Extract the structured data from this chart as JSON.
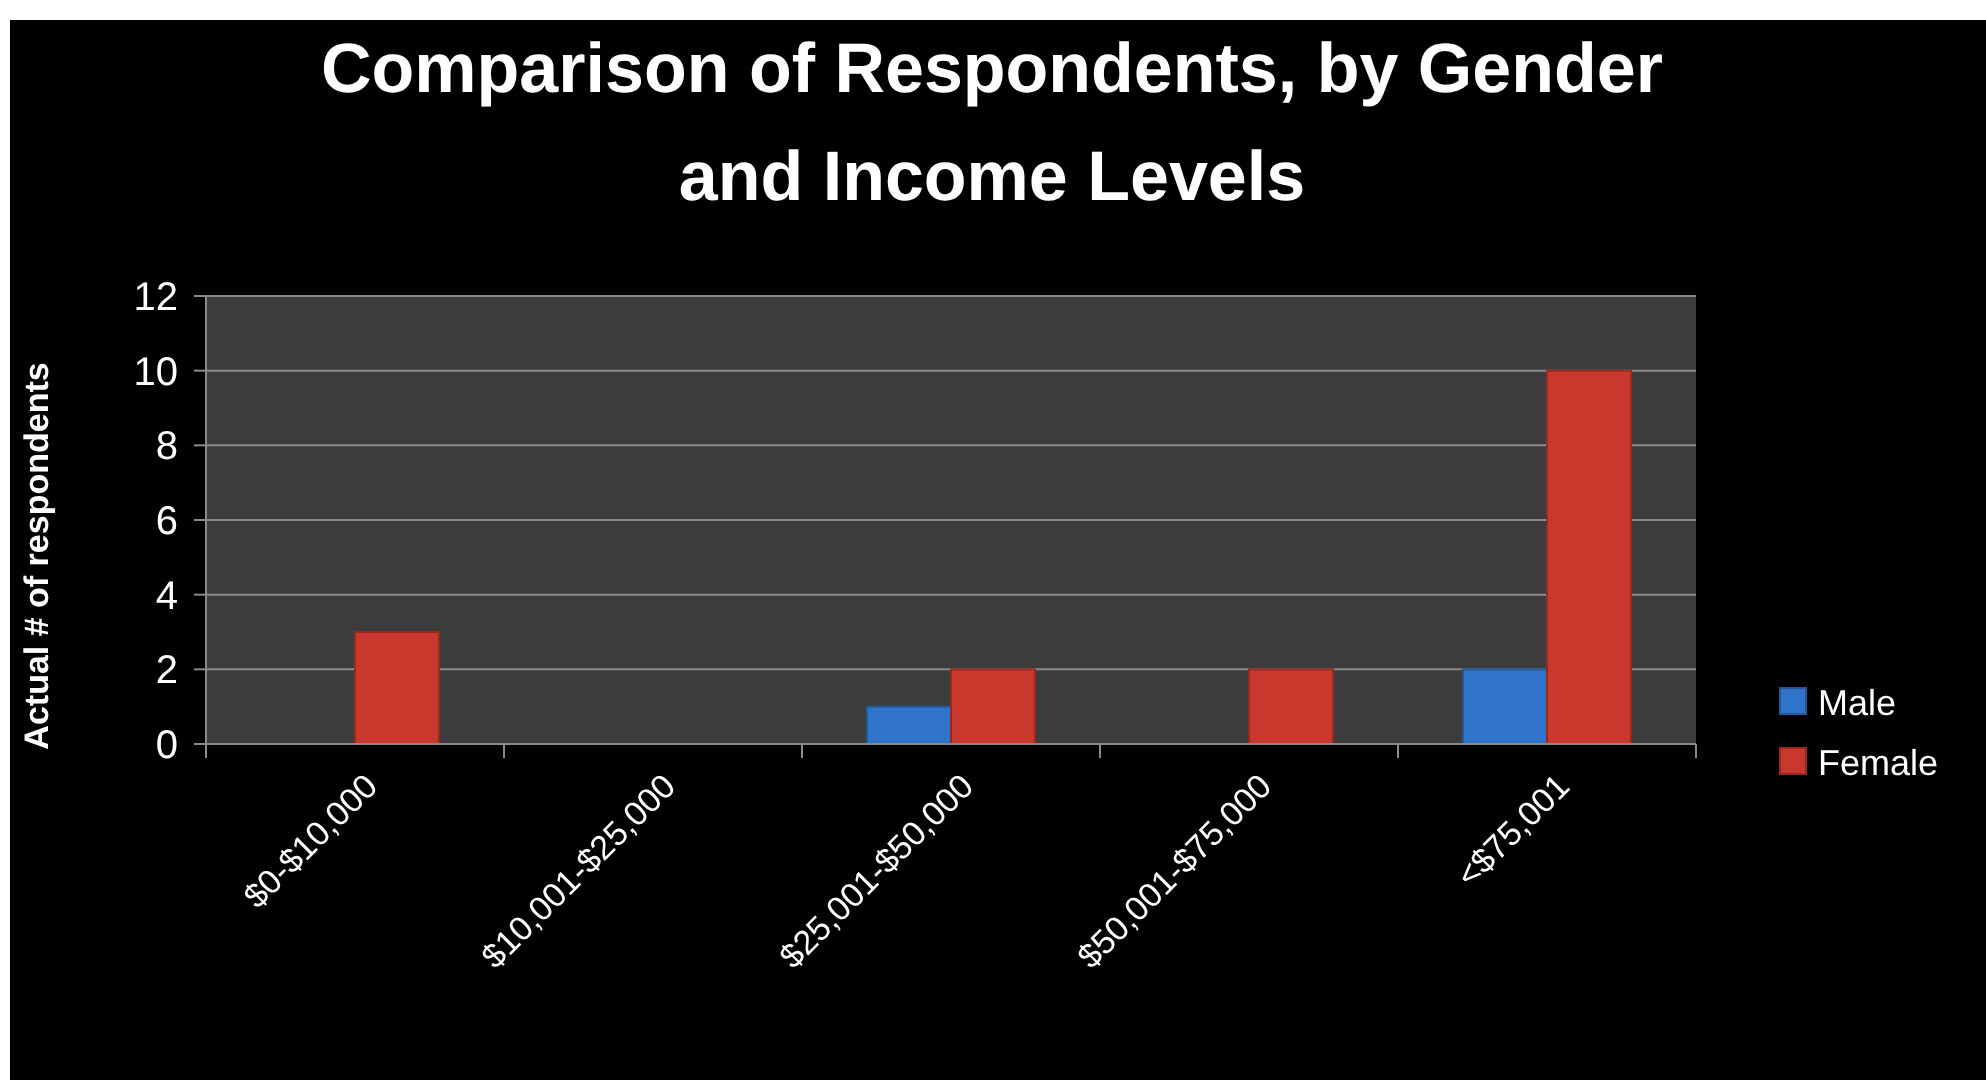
{
  "chart_data": {
    "type": "bar",
    "title": "Comparison of Respondents, by Gender and Income Levels",
    "ylabel": "Actual # of respondents",
    "categories": [
      "$0-$10,000",
      "$10,001-$25,000",
      "$25,001-$50,000",
      "$50,001-$75,000",
      "<$75,001"
    ],
    "series": [
      {
        "name": "Male",
        "color": "#2f74c8",
        "values": [
          null,
          null,
          1,
          null,
          2
        ]
      },
      {
        "name": "Female",
        "color": "#c8382c",
        "values": [
          3,
          null,
          2,
          2,
          10
        ]
      }
    ],
    "ylim": [
      0,
      12
    ],
    "yticks": [
      0,
      2,
      4,
      6,
      8,
      10,
      12
    ],
    "grid": "y",
    "legend": "right"
  }
}
